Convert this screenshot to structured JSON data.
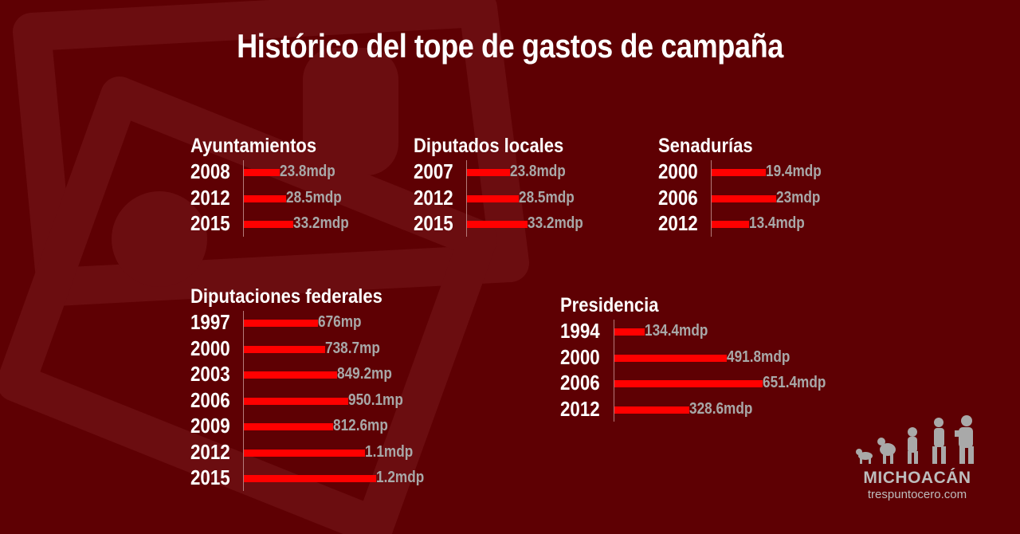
{
  "title": "Histórico del tope de gastos de campaña",
  "colors": {
    "background": "#5e0003",
    "bar": "#ff0000",
    "label": "#a8a8a8",
    "text": "#ffffff"
  },
  "chart_data": [
    {
      "type": "bar",
      "title": "Ayuntamientos",
      "categories": [
        "2008",
        "2012",
        "2015"
      ],
      "values": [
        23.8,
        28.5,
        33.2
      ],
      "labels": [
        "23.8mdp",
        "28.5mdp",
        "33.2mdp"
      ]
    },
    {
      "type": "bar",
      "title": "Diputados locales",
      "categories": [
        "2007",
        "2012",
        "2015"
      ],
      "values": [
        23.8,
        28.5,
        33.2
      ],
      "labels": [
        "23.8mdp",
        "28.5mdp",
        "33.2mdp"
      ]
    },
    {
      "type": "bar",
      "title": "Senadurías",
      "categories": [
        "2000",
        "2006",
        "2012"
      ],
      "values": [
        19.4,
        23,
        13.4
      ],
      "labels": [
        "19.4mdp",
        "23mdp",
        "13.4mdp"
      ]
    },
    {
      "type": "bar",
      "title": "Diputaciones federales",
      "categories": [
        "1997",
        "2000",
        "2003",
        "2006",
        "2009",
        "2012",
        "2015"
      ],
      "values": [
        676,
        738.7,
        849.2,
        950.1,
        812.6,
        1100,
        1200
      ],
      "labels": [
        "676mp",
        "738.7mp",
        "849.2mp",
        "950.1mp",
        "812.6mp",
        "1.1mdp",
        "1.2mdp"
      ]
    },
    {
      "type": "bar",
      "title": "Presidencia",
      "categories": [
        "1994",
        "2000",
        "2006",
        "2012"
      ],
      "values": [
        134.4,
        491.8,
        651.4,
        328.6
      ],
      "labels": [
        "134.4mdp",
        "491.8mdp",
        "651.4mdp",
        "328.6mdp"
      ]
    }
  ],
  "branding": {
    "name": "MICHOACÁN",
    "url": "trespuntocero.com",
    "logo_icon": "evolution-silhouettes-icon"
  }
}
